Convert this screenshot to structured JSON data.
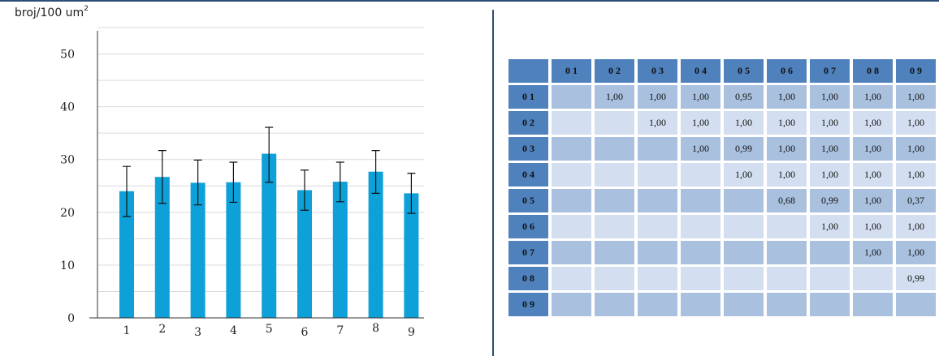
{
  "chart_data": [
    {
      "type": "bar",
      "ylabel": "broj/100 um",
      "ylabel_superscript": "2",
      "categories": [
        "1",
        "2",
        "3",
        "4",
        "5",
        "6",
        "7",
        "8",
        "9"
      ],
      "values": [
        24.0,
        26.7,
        25.6,
        25.7,
        31.1,
        24.2,
        25.8,
        27.7,
        23.6
      ],
      "error_low": [
        19.2,
        21.7,
        21.4,
        21.9,
        25.7,
        20.4,
        22.0,
        23.6,
        19.8
      ],
      "error_high": [
        28.7,
        31.7,
        29.9,
        29.5,
        36.1,
        28.0,
        29.5,
        31.7,
        27.4
      ],
      "ylim": [
        0,
        55
      ],
      "yticks": [
        "0",
        "10",
        "20",
        "30",
        "40",
        "50"
      ],
      "grid": true,
      "bar_color": "#0ea0d8"
    },
    {
      "type": "table",
      "columns": [
        "0 1",
        "0 2",
        "0 3",
        "0 4",
        "0 5",
        "0 6",
        "0 7",
        "0 8",
        "0 9"
      ],
      "rows": [
        {
          "label": "0 1",
          "cells": [
            "",
            "1,00",
            "1,00",
            "1,00",
            "0,95",
            "1,00",
            "1,00",
            "1,00",
            "1,00"
          ]
        },
        {
          "label": "0 2",
          "cells": [
            "",
            "",
            "1,00",
            "1,00",
            "1,00",
            "1,00",
            "1,00",
            "1,00",
            "1,00"
          ]
        },
        {
          "label": "0 3",
          "cells": [
            "",
            "",
            "",
            "1,00",
            "0,99",
            "1,00",
            "1,00",
            "1,00",
            "1,00"
          ]
        },
        {
          "label": "0 4",
          "cells": [
            "",
            "",
            "",
            "",
            "1,00",
            "1,00",
            "1,00",
            "1,00",
            "1,00"
          ]
        },
        {
          "label": "0 5",
          "cells": [
            "",
            "",
            "",
            "",
            "",
            "0,68",
            "0,99",
            "1,00",
            "0,37"
          ]
        },
        {
          "label": "0 6",
          "cells": [
            "",
            "",
            "",
            "",
            "",
            "",
            "1,00",
            "1,00",
            "1,00"
          ]
        },
        {
          "label": "0 7",
          "cells": [
            "",
            "",
            "",
            "",
            "",
            "",
            "",
            "1,00",
            "1,00"
          ]
        },
        {
          "label": "0 8",
          "cells": [
            "",
            "",
            "",
            "",
            "",
            "",
            "",
            "",
            "0,99"
          ]
        },
        {
          "label": "0 9",
          "cells": [
            "",
            "",
            "",
            "",
            "",
            "",
            "",
            "",
            ""
          ]
        }
      ],
      "header_color": "#4f81bd",
      "odd_row_color": "#a9c0df",
      "even_row_color": "#d3dff0"
    }
  ]
}
